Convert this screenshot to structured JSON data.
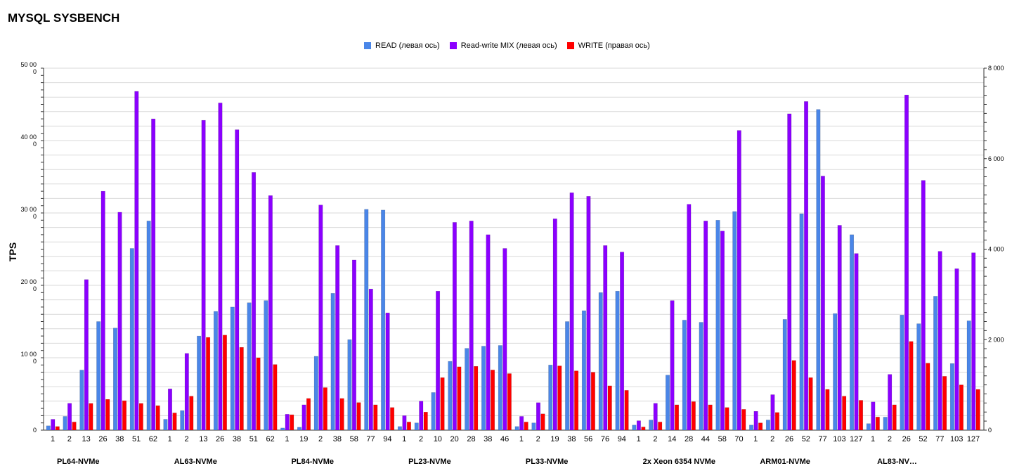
{
  "title": "MYSQL SYSBENCH",
  "chart_data": {
    "type": "bar",
    "title": "MYSQL SYSBENCH",
    "ylabel": "TPS",
    "ylim": [
      0,
      50000
    ],
    "y2lim": [
      0,
      8000
    ],
    "y_ticks": [
      "0",
      "10 000",
      "20 000",
      "30 000",
      "40 000",
      "50 000"
    ],
    "y2_ticks": [
      "0",
      "2 000",
      "4 000",
      "6 000",
      "8 000"
    ],
    "legend_position": "top-center",
    "grid": true,
    "series": [
      {
        "name": "READ (левая ось)",
        "axis": "left",
        "color": "#4a86e8"
      },
      {
        "name": "Read-write MIX (левая ось)",
        "axis": "left",
        "color": "#8b00ff"
      },
      {
        "name": "WRITE (правая ось)",
        "axis": "right",
        "color": "#ff0000"
      }
    ],
    "groups": [
      {
        "name": "PL64-NVMe",
        "categories": [
          "1",
          "2",
          "13",
          "26",
          "38",
          "51",
          "62"
        ],
        "read": [
          600,
          1900,
          8300,
          15000,
          14100,
          25100,
          28900
        ],
        "mix": [
          1500,
          3700,
          20800,
          33000,
          30100,
          46800,
          43000
        ],
        "write": [
          80,
          180,
          590,
          680,
          650,
          590,
          540
        ]
      },
      {
        "name": "AL63-NVMe",
        "categories": [
          "1",
          "2",
          "13",
          "26",
          "38",
          "51",
          "62"
        ],
        "read": [
          1500,
          2700,
          13000,
          16400,
          17000,
          17600,
          17900
        ],
        "mix": [
          5700,
          10600,
          42800,
          45200,
          41500,
          35600,
          32400
        ],
        "write": [
          380,
          750,
          2050,
          2100,
          1830,
          1600,
          1450
        ]
      },
      {
        "name": "PL84-NVMe",
        "categories": [
          "1",
          "19",
          "2",
          "38",
          "58",
          "77",
          "94"
        ],
        "read": [
          300,
          400,
          10200,
          18900,
          12500,
          30500,
          30400
        ],
        "mix": [
          2200,
          3500,
          31100,
          25500,
          23500,
          19500,
          16200
        ],
        "write": [
          340,
          700,
          940,
          700,
          610,
          560,
          500
        ]
      },
      {
        "name": "PL23-NVMe",
        "categories": [
          "1",
          "2",
          "10",
          "20",
          "28",
          "38",
          "46"
        ],
        "read": [
          500,
          1000,
          5200,
          9500,
          11300,
          11600,
          11700
        ],
        "mix": [
          2000,
          4000,
          19200,
          28700,
          28900,
          27000,
          25100
        ],
        "write": [
          180,
          400,
          1160,
          1400,
          1410,
          1330,
          1250
        ]
      },
      {
        "name": "PL33-NVMe",
        "categories": [
          "1",
          "2",
          "19",
          "38",
          "56",
          "76",
          "94"
        ],
        "read": [
          500,
          1000,
          9000,
          15000,
          16500,
          19000,
          19200
        ],
        "mix": [
          1900,
          3800,
          29200,
          32800,
          32300,
          25500,
          24600
        ],
        "write": [
          180,
          360,
          1420,
          1310,
          1280,
          980,
          880
        ]
      },
      {
        "name": "2x Xeon 6354 NVMe",
        "categories": [
          "1",
          "2",
          "14",
          "28",
          "44",
          "58",
          "70"
        ],
        "read": [
          700,
          1400,
          7600,
          15200,
          14900,
          29000,
          30200
        ],
        "mix": [
          1300,
          3700,
          17900,
          31200,
          28900,
          27500,
          41400
        ],
        "write": [
          70,
          180,
          560,
          630,
          560,
          500,
          460
        ]
      },
      {
        "name": "ARM01-NVMe",
        "categories": [
          "1",
          "2",
          "26",
          "52",
          "77",
          "103",
          "127"
        ],
        "read": [
          700,
          1400,
          15300,
          29900,
          44300,
          16100,
          27000
        ],
        "mix": [
          2600,
          4900,
          43700,
          45400,
          35100,
          28300,
          24400
        ],
        "write": [
          160,
          390,
          1540,
          1160,
          900,
          750,
          660
        ]
      },
      {
        "name": "AL83-NV…",
        "categories": [
          "1",
          "2",
          "26",
          "52",
          "77",
          "103",
          "127"
        ],
        "read": [
          900,
          1800,
          15900,
          14700,
          18500,
          9200,
          15100
        ],
        "mix": [
          3900,
          7700,
          46300,
          34500,
          24700,
          22300,
          24500
        ],
        "write": [
          290,
          560,
          1960,
          1480,
          1190,
          1000,
          900
        ]
      }
    ]
  }
}
